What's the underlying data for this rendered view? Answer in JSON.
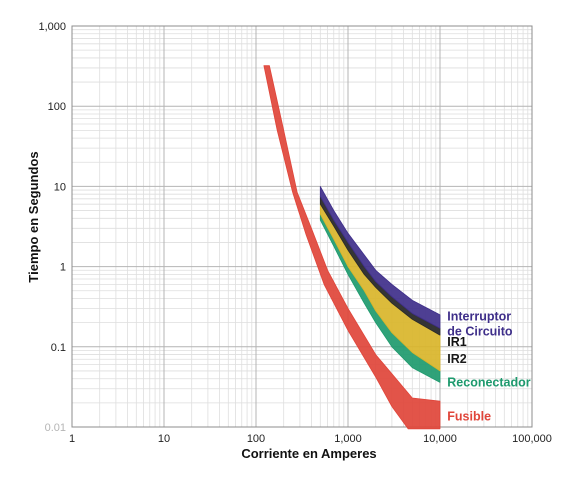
{
  "chart_data": {
    "type": "area",
    "xlabel": "Corriente en Amperes",
    "ylabel": "Tiempo en Segundos",
    "x_scale": "log",
    "y_scale": "log",
    "xlim": [
      1,
      100000
    ],
    "ylim": [
      0.01,
      1000
    ],
    "grid": true,
    "x_ticks": [
      {
        "value": 1,
        "label": "1"
      },
      {
        "value": 10,
        "label": "10"
      },
      {
        "value": 100,
        "label": "100"
      },
      {
        "value": 1000,
        "label": "1,000"
      },
      {
        "value": 10000,
        "label": "10,000"
      },
      {
        "value": 100000,
        "label": "100,000"
      }
    ],
    "y_ticks": [
      {
        "value": 0.01,
        "label": "0.01"
      },
      {
        "value": 0.1,
        "label": "0.1"
      },
      {
        "value": 1,
        "label": "1"
      },
      {
        "value": 10,
        "label": "10"
      },
      {
        "value": 100,
        "label": "100"
      },
      {
        "value": 1000,
        "label": "1,000"
      }
    ],
    "series": [
      {
        "name": "Fusible",
        "color": "#e0453a",
        "label_lines": [
          "Fusible"
        ],
        "label_at": {
          "x": 12000,
          "y": 0.0135
        },
        "upper": [
          [
            140,
            320
          ],
          [
            200,
            50
          ],
          [
            280,
            8.5
          ],
          [
            400,
            3
          ],
          [
            600,
            0.9
          ],
          [
            1000,
            0.3
          ],
          [
            2000,
            0.08
          ],
          [
            5000,
            0.023
          ],
          [
            10000,
            0.021
          ]
        ],
        "lower": [
          [
            122,
            320
          ],
          [
            170,
            50
          ],
          [
            250,
            8.5
          ],
          [
            350,
            2.5
          ],
          [
            550,
            0.6
          ],
          [
            1000,
            0.16
          ],
          [
            2000,
            0.042
          ],
          [
            3000,
            0.018
          ],
          [
            4500,
            0.0095
          ],
          [
            10000,
            0.0095
          ]
        ]
      },
      {
        "name": "Reconectador",
        "color": "#1e9a6e",
        "label_lines": [
          "Reconectador"
        ],
        "label_at": {
          "x": 12000,
          "y": 0.036
        },
        "upper": [
          [
            500,
            4.5
          ],
          [
            700,
            2.2
          ],
          [
            1000,
            1.0
          ],
          [
            1500,
            0.5
          ],
          [
            2000,
            0.28
          ],
          [
            3000,
            0.15
          ],
          [
            5000,
            0.085
          ],
          [
            10000,
            0.05
          ]
        ],
        "lower": [
          [
            500,
            3.8
          ],
          [
            700,
            1.8
          ],
          [
            1000,
            0.8
          ],
          [
            1500,
            0.35
          ],
          [
            2000,
            0.2
          ],
          [
            3000,
            0.1
          ],
          [
            5000,
            0.055
          ],
          [
            10000,
            0.036
          ]
        ]
      },
      {
        "name": "IR2",
        "color": "#d9b52a",
        "label_lines": [
          "IR2"
        ],
        "label_at": {
          "x": 12000,
          "y": 0.07
        },
        "upper": [
          [
            500,
            6
          ],
          [
            700,
            3.2
          ],
          [
            1000,
            1.6
          ],
          [
            1500,
            0.8
          ],
          [
            2000,
            0.55
          ],
          [
            3000,
            0.35
          ],
          [
            5000,
            0.22
          ],
          [
            10000,
            0.14
          ]
        ],
        "lower": [
          [
            500,
            4.5
          ],
          [
            700,
            2.2
          ],
          [
            1000,
            1.0
          ],
          [
            1500,
            0.5
          ],
          [
            2000,
            0.28
          ],
          [
            3000,
            0.15
          ],
          [
            5000,
            0.085
          ],
          [
            10000,
            0.05
          ]
        ]
      },
      {
        "name": "IR1",
        "color": "#2a2a2a",
        "label_lines": [
          "IR1"
        ],
        "label_at": {
          "x": 12000,
          "y": 0.115
        },
        "upper": [
          [
            500,
            7.5
          ],
          [
            700,
            3.8
          ],
          [
            1000,
            2.0
          ],
          [
            1500,
            1.0
          ],
          [
            2000,
            0.65
          ],
          [
            3000,
            0.42
          ],
          [
            5000,
            0.26
          ],
          [
            10000,
            0.17
          ]
        ],
        "lower": [
          [
            500,
            6
          ],
          [
            700,
            3.2
          ],
          [
            1000,
            1.6
          ],
          [
            1500,
            0.8
          ],
          [
            2000,
            0.55
          ],
          [
            3000,
            0.35
          ],
          [
            5000,
            0.22
          ],
          [
            10000,
            0.14
          ]
        ]
      },
      {
        "name": "Interruptor de Circuito",
        "color": "#3f2f8a",
        "label_lines": [
          "Interruptor",
          "de Circuito"
        ],
        "label_at": {
          "x": 12000,
          "y": 0.24
        },
        "upper": [
          [
            500,
            10
          ],
          [
            700,
            5
          ],
          [
            1000,
            2.6
          ],
          [
            1500,
            1.4
          ],
          [
            2000,
            0.9
          ],
          [
            3000,
            0.6
          ],
          [
            5000,
            0.38
          ],
          [
            10000,
            0.25
          ]
        ],
        "lower": [
          [
            500,
            7.5
          ],
          [
            700,
            3.8
          ],
          [
            1000,
            2.0
          ],
          [
            1500,
            1.0
          ],
          [
            2000,
            0.65
          ],
          [
            3000,
            0.42
          ],
          [
            5000,
            0.26
          ],
          [
            10000,
            0.17
          ]
        ]
      }
    ]
  }
}
